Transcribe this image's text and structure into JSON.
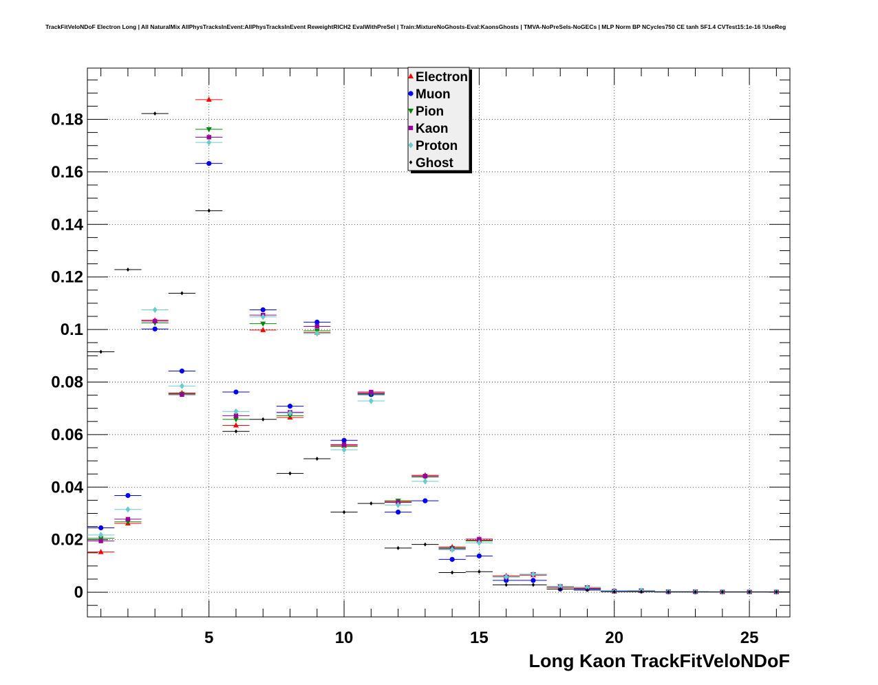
{
  "chart_data": {
    "type": "scatter",
    "title": "TrackFitVeloNDoF Electron Long | All NaturalMix AllPhysTracksInEvent:AllPhysTracksInEvent ReweightRICH2 EvalWithPreSel | Train:MixtureNoGhosts-Eval:KaonsGhosts | TMVA-NoPreSels-NoGECs | MLP Norm BP NCycles750 CE tanh SF1.4 CVTest15:1e-16 !UseReg",
    "xlabel": "Long Kaon TrackFitVeloNDoF",
    "ylabel": "",
    "xlim": [
      0.5,
      26.5
    ],
    "ylim": [
      -0.0094,
      0.1995
    ],
    "grid": true,
    "legend_position": "top-center",
    "x_ticks": [
      5,
      10,
      15,
      20,
      25
    ],
    "x_tick_labels": [
      "5",
      "10",
      "15",
      "20",
      "25"
    ],
    "y_ticks": [
      0,
      0.02,
      0.04,
      0.06,
      0.08,
      0.1,
      0.12,
      0.14,
      0.16,
      0.18
    ],
    "y_tick_labels": [
      "0",
      "0.02",
      "0.04",
      "0.06",
      "0.08",
      "0.1",
      "0.12",
      "0.14",
      "0.16",
      "0.18"
    ],
    "x": [
      1,
      2,
      3,
      4,
      5,
      6,
      7,
      8,
      9,
      10,
      11,
      12,
      13,
      14,
      15,
      16,
      17,
      18,
      19,
      20,
      21,
      22,
      23,
      24,
      25,
      26
    ],
    "series": [
      {
        "name": "Electron",
        "color": "#ff0000",
        "marker": "triangle-up",
        "values": [
          0.0153,
          0.0262,
          0.1035,
          0.0758,
          0.1875,
          0.0635,
          0.0998,
          0.0665,
          0.0988,
          0.0558,
          0.0758,
          0.0345,
          0.0445,
          0.0172,
          0.0198,
          0.0062,
          0.0065,
          0.0018,
          0.0015,
          0.0003,
          0.0005,
          0.0002,
          0.0002,
          0.0001,
          0.0001,
          0.0001
        ]
      },
      {
        "name": "Muon",
        "color": "#0000ff",
        "marker": "circle",
        "values": [
          0.0245,
          0.0368,
          0.1002,
          0.0842,
          0.1632,
          0.0762,
          0.1075,
          0.0708,
          0.1028,
          0.0578,
          0.0752,
          0.0305,
          0.0348,
          0.0125,
          0.0138,
          0.0045,
          0.0045,
          0.0012,
          0.0012,
          0.0005,
          0.0005,
          0.0001,
          0.0001,
          0.0001,
          0.0001,
          0.0001
        ]
      },
      {
        "name": "Pion",
        "color": "#008800",
        "marker": "triangle-down",
        "values": [
          0.0205,
          0.0268,
          0.1025,
          0.0755,
          0.1762,
          0.0658,
          0.1022,
          0.0672,
          0.0995,
          0.0555,
          0.0755,
          0.0348,
          0.0438,
          0.0168,
          0.0195,
          0.0058,
          0.0068,
          0.0022,
          0.0018,
          0.0004,
          0.0006,
          0.0002,
          0.0002,
          0.0001,
          0.0001,
          0.0001
        ]
      },
      {
        "name": "Kaon",
        "color": "#990099",
        "marker": "square",
        "values": [
          0.0195,
          0.0278,
          0.1032,
          0.0752,
          0.1732,
          0.0672,
          0.1055,
          0.0685,
          0.1012,
          0.0562,
          0.0762,
          0.0342,
          0.0442,
          0.0165,
          0.0202,
          0.0058,
          0.0068,
          0.0022,
          0.0018,
          0.0004,
          0.0006,
          0.0002,
          0.0002,
          0.0001,
          0.0001,
          0.0001
        ]
      },
      {
        "name": "Proton",
        "color": "#66cccc",
        "marker": "diamond",
        "values": [
          0.0218,
          0.0315,
          0.1075,
          0.0785,
          0.1712,
          0.0688,
          0.1048,
          0.0682,
          0.0985,
          0.0542,
          0.0728,
          0.0332,
          0.0422,
          0.0162,
          0.0188,
          0.0058,
          0.0068,
          0.0022,
          0.0018,
          0.0004,
          0.0006,
          0.0002,
          0.0002,
          0.0001,
          0.0001,
          0.0001
        ]
      },
      {
        "name": "Ghost",
        "color": "#000000",
        "marker": "small-diamond",
        "values": [
          0.0915,
          0.1228,
          0.1822,
          0.1138,
          0.1452,
          0.0612,
          0.0658,
          0.0452,
          0.0508,
          0.0305,
          0.0338,
          0.0168,
          0.0182,
          0.0075,
          0.0078,
          0.0028,
          0.0028,
          0.0012,
          0.0008,
          0.0002,
          0.0002,
          0.0001,
          0.0001,
          0.0001,
          0.0001,
          0.0001
        ]
      }
    ]
  }
}
